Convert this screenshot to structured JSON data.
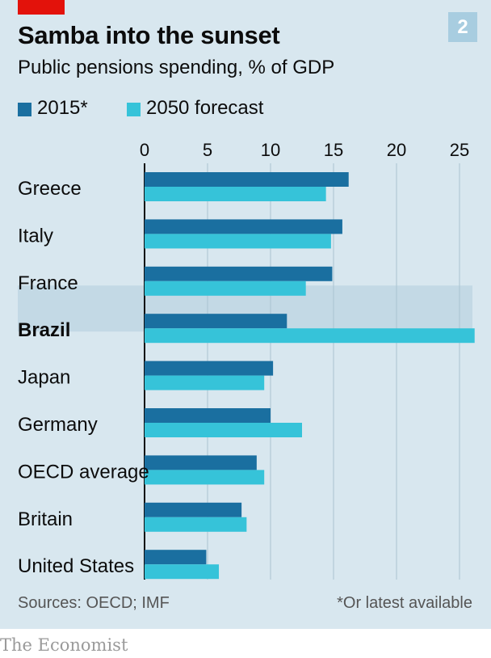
{
  "header": {
    "title": "Samba into the sunset",
    "subtitle": "Public pensions spending, % of GDP",
    "badge": "2"
  },
  "legend": [
    {
      "label": "2015*",
      "color": "#1a6fa0"
    },
    {
      "label": "2050 forecast",
      "color": "#36c3d9"
    }
  ],
  "chart_data": {
    "type": "bar",
    "orientation": "horizontal",
    "title": "Samba into the sunset",
    "subtitle": "Public pensions spending, % of GDP",
    "categories": [
      "Greece",
      "Italy",
      "France",
      "Brazil",
      "Japan",
      "Germany",
      "OECD average",
      "Britain",
      "United States"
    ],
    "highlight": "Brazil",
    "series": [
      {
        "name": "2015*",
        "color": "#1a6fa0",
        "values": [
          16.2,
          15.7,
          14.9,
          11.3,
          10.2,
          10.0,
          8.9,
          7.7,
          4.9
        ]
      },
      {
        "name": "2050 forecast",
        "color": "#36c3d9",
        "values": [
          14.4,
          14.8,
          12.8,
          26.2,
          9.5,
          12.5,
          9.5,
          8.1,
          5.9
        ]
      }
    ],
    "xlim": [
      0,
      26.5
    ],
    "xticks": [
      "0",
      "5",
      "10",
      "15",
      "20",
      "25"
    ],
    "xtick_values": [
      0,
      5,
      10,
      15,
      20,
      25
    ],
    "grid": true,
    "legend_position": "top-left"
  },
  "footer": {
    "source": "Sources: OECD; IMF",
    "footnote": "*Or latest available",
    "brand": "The Economist"
  }
}
